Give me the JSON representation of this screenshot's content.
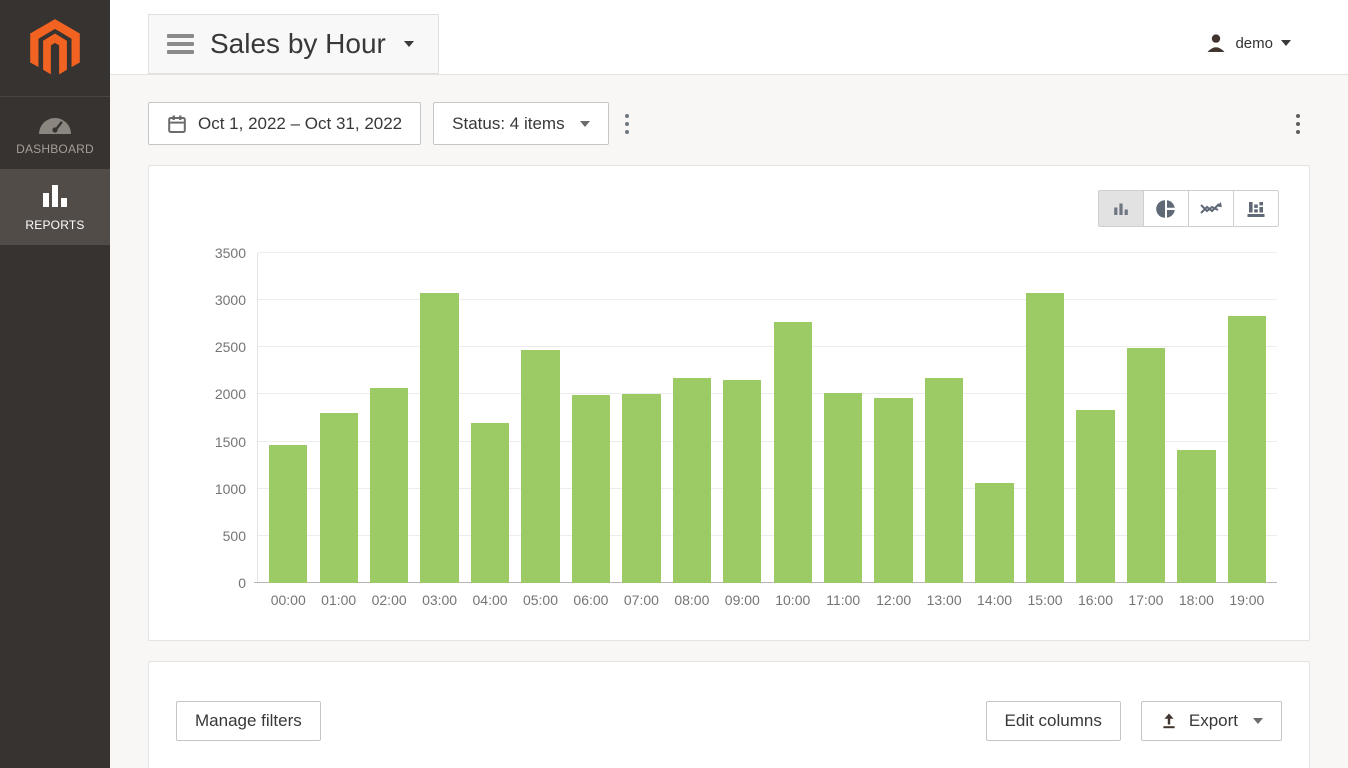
{
  "sidebar": {
    "logo_icon": "magento-logo",
    "items": [
      {
        "label": "DASHBOARD",
        "icon": "dashboard-gauge-icon",
        "active": false
      },
      {
        "label": "REPORTS",
        "icon": "reports-bars-icon",
        "active": true
      }
    ]
  },
  "header": {
    "title": "Sales by Hour",
    "title_menu_icon": "hamburger-icon",
    "user": "demo",
    "user_icon": "person-icon"
  },
  "filters": {
    "date_range": "Oct 1, 2022 – Oct 31, 2022",
    "date_icon": "calendar-icon",
    "status": "Status: 4 items"
  },
  "chart_toolbar": {
    "types": [
      "bar-chart-icon",
      "pie-chart-icon",
      "line-chart-icon",
      "table-chart-icon"
    ],
    "selected": "bar-chart-icon"
  },
  "chart_data": {
    "type": "bar",
    "title": "Sales by Hour",
    "categories": [
      "00:00",
      "01:00",
      "02:00",
      "03:00",
      "04:00",
      "05:00",
      "06:00",
      "07:00",
      "08:00",
      "09:00",
      "10:00",
      "11:00",
      "12:00",
      "13:00",
      "14:00",
      "15:00",
      "16:00",
      "17:00",
      "18:00",
      "19:00"
    ],
    "values": [
      1460,
      1800,
      2070,
      3080,
      1700,
      2470,
      1990,
      2000,
      2170,
      2150,
      2770,
      2020,
      1960,
      2170,
      1060,
      3080,
      1840,
      2490,
      1410,
      2830
    ],
    "xlabel": "",
    "ylabel": "",
    "ylim": [
      0,
      3500
    ],
    "ytick_step": 500,
    "grid": true,
    "legend": false,
    "bar_color": "#9ccb65"
  },
  "footer": {
    "manage_filters": "Manage filters",
    "edit_columns": "Edit columns",
    "export": "Export",
    "export_icon": "upload-arrow-icon"
  },
  "colors": {
    "accent_orange": "#f26322",
    "bar_green": "#9ccb65",
    "sidebar_bg": "#373330",
    "sidebar_active_bg": "#524c48",
    "icon_slate": "#5f6a76"
  }
}
